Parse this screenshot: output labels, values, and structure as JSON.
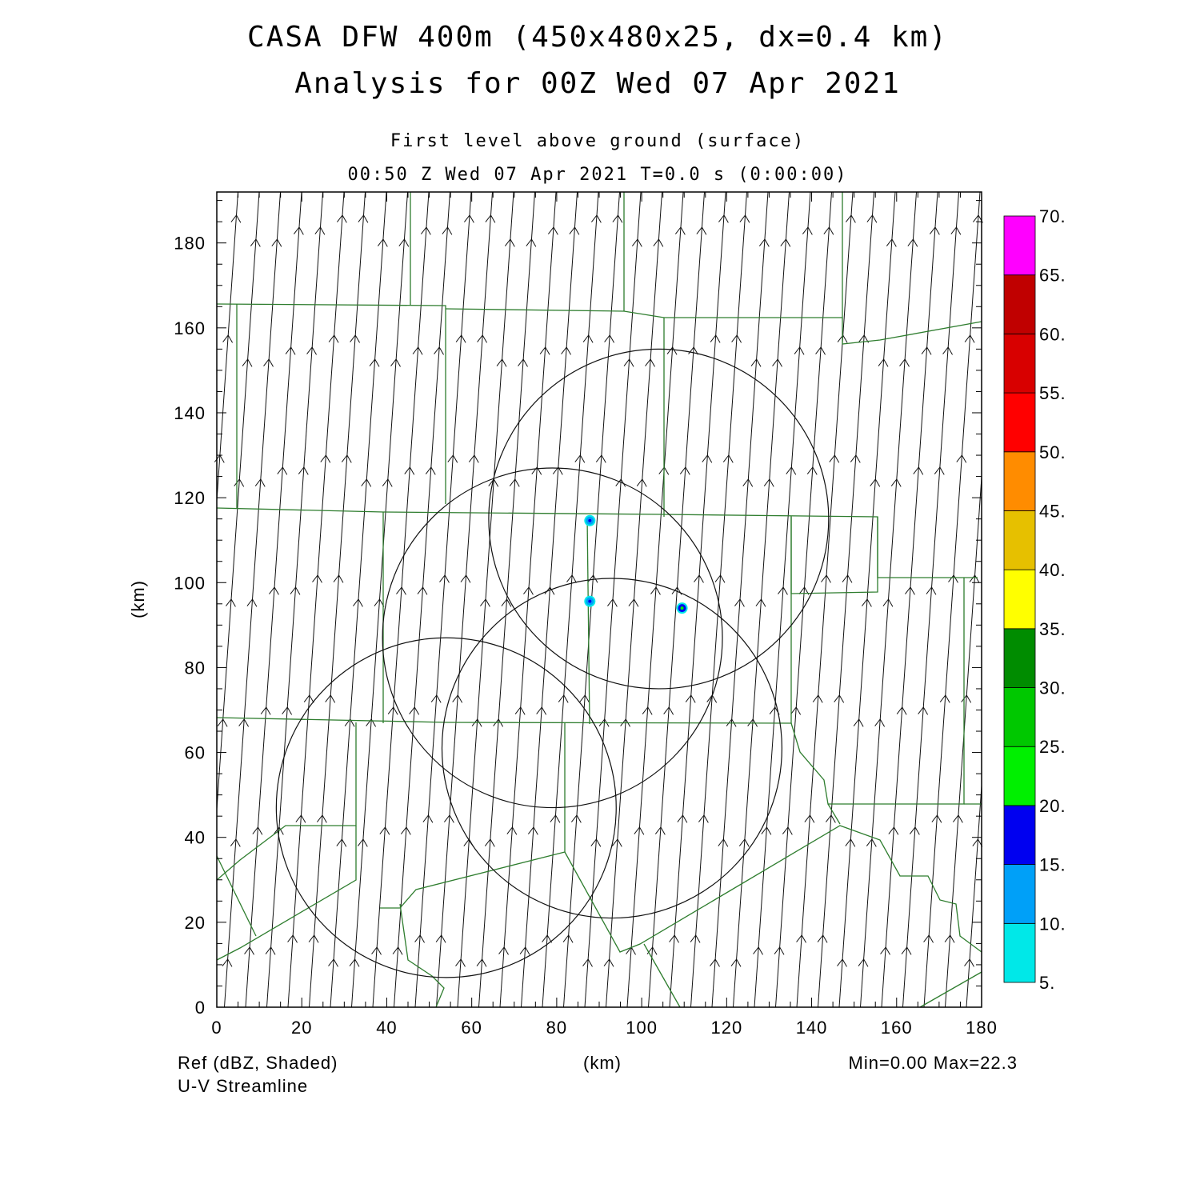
{
  "titles": {
    "line1": "CASA DFW 400m (450x480x25, dx=0.4 km)",
    "line2": "Analysis for 00Z Wed 07 Apr 2021",
    "level": "First level above ground (surface)",
    "valid_time": "00:50 Z Wed 07 Apr 2021    T=0.0 s (0:00:00)"
  },
  "footer": {
    "field1": "Ref (dBZ, Shaded)",
    "field2": "U-V Streamline",
    "xunit": "(km)",
    "minmax": "Min=0.00 Max=22.3"
  },
  "chart_data": {
    "type": "heatmap",
    "xlabel": "(km)",
    "ylabel": "(km)",
    "xlim": [
      0,
      180
    ],
    "ylim": [
      0,
      192
    ],
    "xticks": [
      "0",
      "20",
      "40",
      "60",
      "80",
      "100",
      "120",
      "140",
      "160",
      "180"
    ],
    "yticks": [
      "0",
      "20",
      "40",
      "60",
      "80",
      "100",
      "120",
      "140",
      "160",
      "180"
    ],
    "xtick_values": [
      0,
      20,
      40,
      60,
      80,
      100,
      120,
      140,
      160,
      180
    ],
    "ytick_values": [
      0,
      20,
      40,
      60,
      80,
      100,
      120,
      140,
      160,
      180
    ],
    "colorbar": {
      "levels": [
        "5.",
        "10.",
        "15.",
        "20.",
        "25.",
        "30.",
        "35.",
        "40.",
        "45.",
        "50.",
        "55.",
        "60.",
        "65.",
        "70."
      ],
      "colors": [
        "#00e8e8",
        "#00a0f8",
        "#0000f0",
        "#00f000",
        "#00c800",
        "#008c00",
        "#ffff00",
        "#e6c000",
        "#ff8c00",
        "#ff0000",
        "#d80000",
        "#c00000",
        "#ff00ff"
      ]
    },
    "reflectivity_echoes": [
      {
        "x": 87.8,
        "y": 114.6,
        "dbz": 12
      },
      {
        "x": 87.8,
        "y": 95.6,
        "dbz": 12
      },
      {
        "x": 109.5,
        "y": 94.0,
        "dbz": 15
      }
    ],
    "radar_range_rings": [
      {
        "cx": 104,
        "cy": 115,
        "r": 40
      },
      {
        "cx": 79,
        "cy": 87,
        "r": 40
      },
      {
        "cx": 93,
        "cy": 61,
        "r": 40
      },
      {
        "cx": 54,
        "cy": 47,
        "r": 40
      }
    ],
    "streamline_flow": "south-to-north (southerly)"
  }
}
